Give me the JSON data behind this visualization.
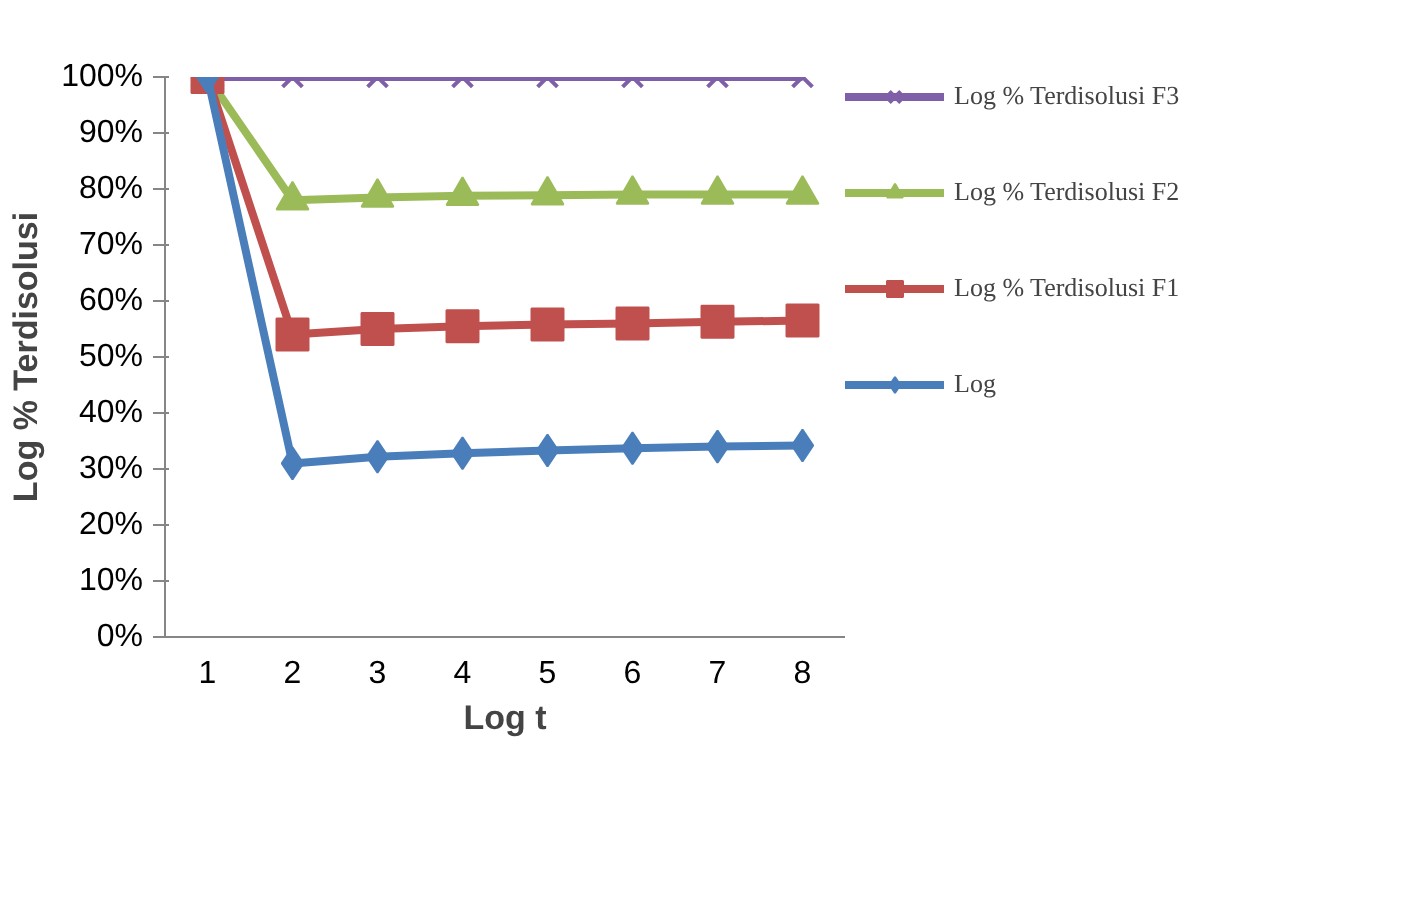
{
  "chart_data": {
    "type": "line",
    "xlabel": "Log t",
    "ylabel": "Log % Terdisolusi",
    "categories": [
      "1",
      "2",
      "3",
      "4",
      "5",
      "6",
      "7",
      "8"
    ],
    "ylim": [
      0,
      100
    ],
    "yticks": [
      {
        "value": 0,
        "label": "0%"
      },
      {
        "value": 10,
        "label": "10%"
      },
      {
        "value": 20,
        "label": "20%"
      },
      {
        "value": 30,
        "label": "30%"
      },
      {
        "value": 40,
        "label": "40%"
      },
      {
        "value": 50,
        "label": "50%"
      },
      {
        "value": 60,
        "label": "60%"
      },
      {
        "value": 70,
        "label": "70%"
      },
      {
        "value": 80,
        "label": "80%"
      },
      {
        "value": 90,
        "label": "90%"
      },
      {
        "value": 100,
        "label": "100%"
      }
    ],
    "grid": false,
    "legend": "right",
    "series": [
      {
        "name": "Log % Terdisolusi F3",
        "color": "#7f5fa8",
        "marker": "cross",
        "values": [
          100,
          100,
          100,
          100,
          100,
          100,
          100,
          100
        ]
      },
      {
        "name": "Log % Terdisolusi F2",
        "color": "#9bbb59",
        "marker": "triangle",
        "values": [
          100,
          78,
          78.5,
          78.8,
          78.9,
          79,
          79,
          79
        ]
      },
      {
        "name": "Log % Terdisolusi F1",
        "color": "#c0504d",
        "marker": "square",
        "values": [
          100,
          54,
          55,
          55.5,
          55.8,
          56,
          56.3,
          56.5
        ]
      },
      {
        "name": "Log",
        "color": "#4a7ebb",
        "marker": "diamond",
        "values": [
          100,
          31,
          32.2,
          32.8,
          33.3,
          33.7,
          34,
          34.2
        ]
      }
    ]
  }
}
